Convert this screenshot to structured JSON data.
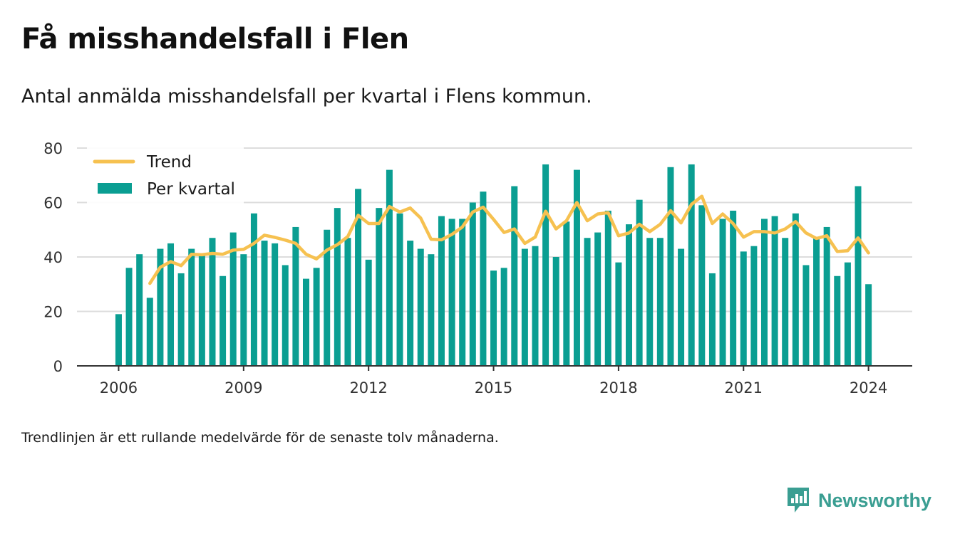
{
  "title": "Få misshandelsfall i Flen",
  "subtitle": "Antal anmälda misshandelsfall per kvartal i Flens kommun.",
  "note": "Trendlinjen är ett rullande medelvärde för de senaste tolv månaderna.",
  "brand": {
    "name": "Newsworthy",
    "icon": "bar-chart-speech-bubble-icon",
    "color": "#3a9e92"
  },
  "colors": {
    "bar": "#0a9e92",
    "trend": "#f6c150",
    "grid": "#dddddd",
    "axis": "#333333"
  },
  "chart_data": {
    "type": "bar",
    "x_unit": "year",
    "x_ticks": [
      2006,
      2009,
      2012,
      2015,
      2018,
      2021,
      2024
    ],
    "x_range": [
      2005,
      2025.05
    ],
    "ylim": [
      0,
      80
    ],
    "y_ticks": [
      0,
      20,
      40,
      60,
      80
    ],
    "grid": true,
    "legend_position": "top-left",
    "x": [
      2006.0,
      2006.25,
      2006.5,
      2006.75,
      2007.0,
      2007.25,
      2007.5,
      2007.75,
      2008.0,
      2008.25,
      2008.5,
      2008.75,
      2009.0,
      2009.25,
      2009.5,
      2009.75,
      2010.0,
      2010.25,
      2010.5,
      2010.75,
      2011.0,
      2011.25,
      2011.5,
      2011.75,
      2012.0,
      2012.25,
      2012.5,
      2012.75,
      2013.0,
      2013.25,
      2013.5,
      2013.75,
      2014.0,
      2014.25,
      2014.5,
      2014.75,
      2015.0,
      2015.25,
      2015.5,
      2015.75,
      2016.0,
      2016.25,
      2016.5,
      2016.75,
      2017.0,
      2017.25,
      2017.5,
      2017.75,
      2018.0,
      2018.25,
      2018.5,
      2018.75,
      2019.0,
      2019.25,
      2019.5,
      2019.75,
      2020.0,
      2020.25,
      2020.5,
      2020.75,
      2021.0,
      2021.25,
      2021.5,
      2021.75,
      2022.0,
      2022.25,
      2022.5,
      2022.75,
      2023.0,
      2023.25,
      2023.5,
      2023.75,
      2024.0
    ],
    "series": [
      {
        "name": "Per kvartal",
        "type": "bar",
        "color": "#0a9e92",
        "values": [
          19,
          36,
          41,
          25,
          43,
          45,
          34,
          43,
          41,
          47,
          33,
          49,
          41,
          56,
          46,
          45,
          37,
          51,
          32,
          36,
          50,
          58,
          47,
          65,
          39,
          58,
          72,
          56,
          46,
          43,
          41,
          55,
          54,
          54,
          60,
          64,
          35,
          36,
          66,
          43,
          44,
          74,
          40,
          53,
          72,
          47,
          49,
          57,
          38,
          52,
          61,
          47,
          47,
          73,
          43,
          74,
          59,
          34,
          54,
          57,
          42,
          44,
          54,
          55,
          47,
          56,
          37,
          47,
          51,
          33,
          38,
          66,
          30
        ]
      },
      {
        "name": "Trend",
        "type": "line",
        "color": "#f6c150",
        "values": [
          null,
          null,
          null,
          30.3,
          36.2,
          38.3,
          36.8,
          41.0,
          40.8,
          41.3,
          41.0,
          42.5,
          42.8,
          45.0,
          48.0,
          47.2,
          46.2,
          45.0,
          41.0,
          39.3,
          42.5,
          44.5,
          47.5,
          55.3,
          52.3,
          52.3,
          58.5,
          56.5,
          58.0,
          54.3,
          46.5,
          46.3,
          48.3,
          51.0,
          56.5,
          58.3,
          53.8,
          49.0,
          50.3,
          45.0,
          47.3,
          56.8,
          50.3,
          53.3,
          60.0,
          53.3,
          55.8,
          56.3,
          47.8,
          48.8,
          52.0,
          49.3,
          52.0,
          57.0,
          52.5,
          59.3,
          62.3,
          52.3,
          55.8,
          52.3,
          47.3,
          49.3,
          49.3,
          48.8,
          50.3,
          53.0,
          48.8,
          46.8,
          47.8,
          42.0,
          42.3,
          47.0,
          41.5
        ]
      }
    ]
  }
}
